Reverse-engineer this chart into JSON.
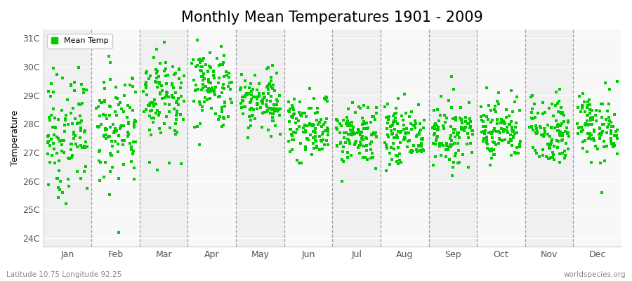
{
  "title": "Monthly Mean Temperatures 1901 - 2009",
  "ylabel": "Temperature",
  "xlabel_months": [
    "Jan",
    "Feb",
    "Mar",
    "Apr",
    "May",
    "Jun",
    "Jul",
    "Aug",
    "Sep",
    "Oct",
    "Nov",
    "Dec"
  ],
  "ylim": [
    23.7,
    31.3
  ],
  "yticks": [
    24,
    25,
    26,
    27,
    28,
    29,
    30,
    31
  ],
  "ytick_labels": [
    "24C",
    "25C",
    "26C",
    "27C",
    "28C",
    "29C",
    "30C",
    "31C"
  ],
  "dot_color": "#00cc00",
  "background_color": "#ffffff",
  "plot_bg_color": "#f0f0f0",
  "band_color_light": "#f8f8f8",
  "grid_color": "#888888",
  "title_fontsize": 15,
  "bottom_left_text": "Latitude 10.75 Longitude 92.25",
  "bottom_right_text": "worldspecies.org",
  "monthly_means": [
    27.6,
    27.9,
    29.0,
    29.3,
    28.8,
    27.9,
    27.6,
    27.6,
    27.7,
    27.8,
    27.8,
    27.9
  ],
  "monthly_stds": [
    1.05,
    1.05,
    0.85,
    0.72,
    0.6,
    0.55,
    0.52,
    0.52,
    0.52,
    0.55,
    0.6,
    0.6
  ],
  "seed": 7,
  "n_years": 109
}
